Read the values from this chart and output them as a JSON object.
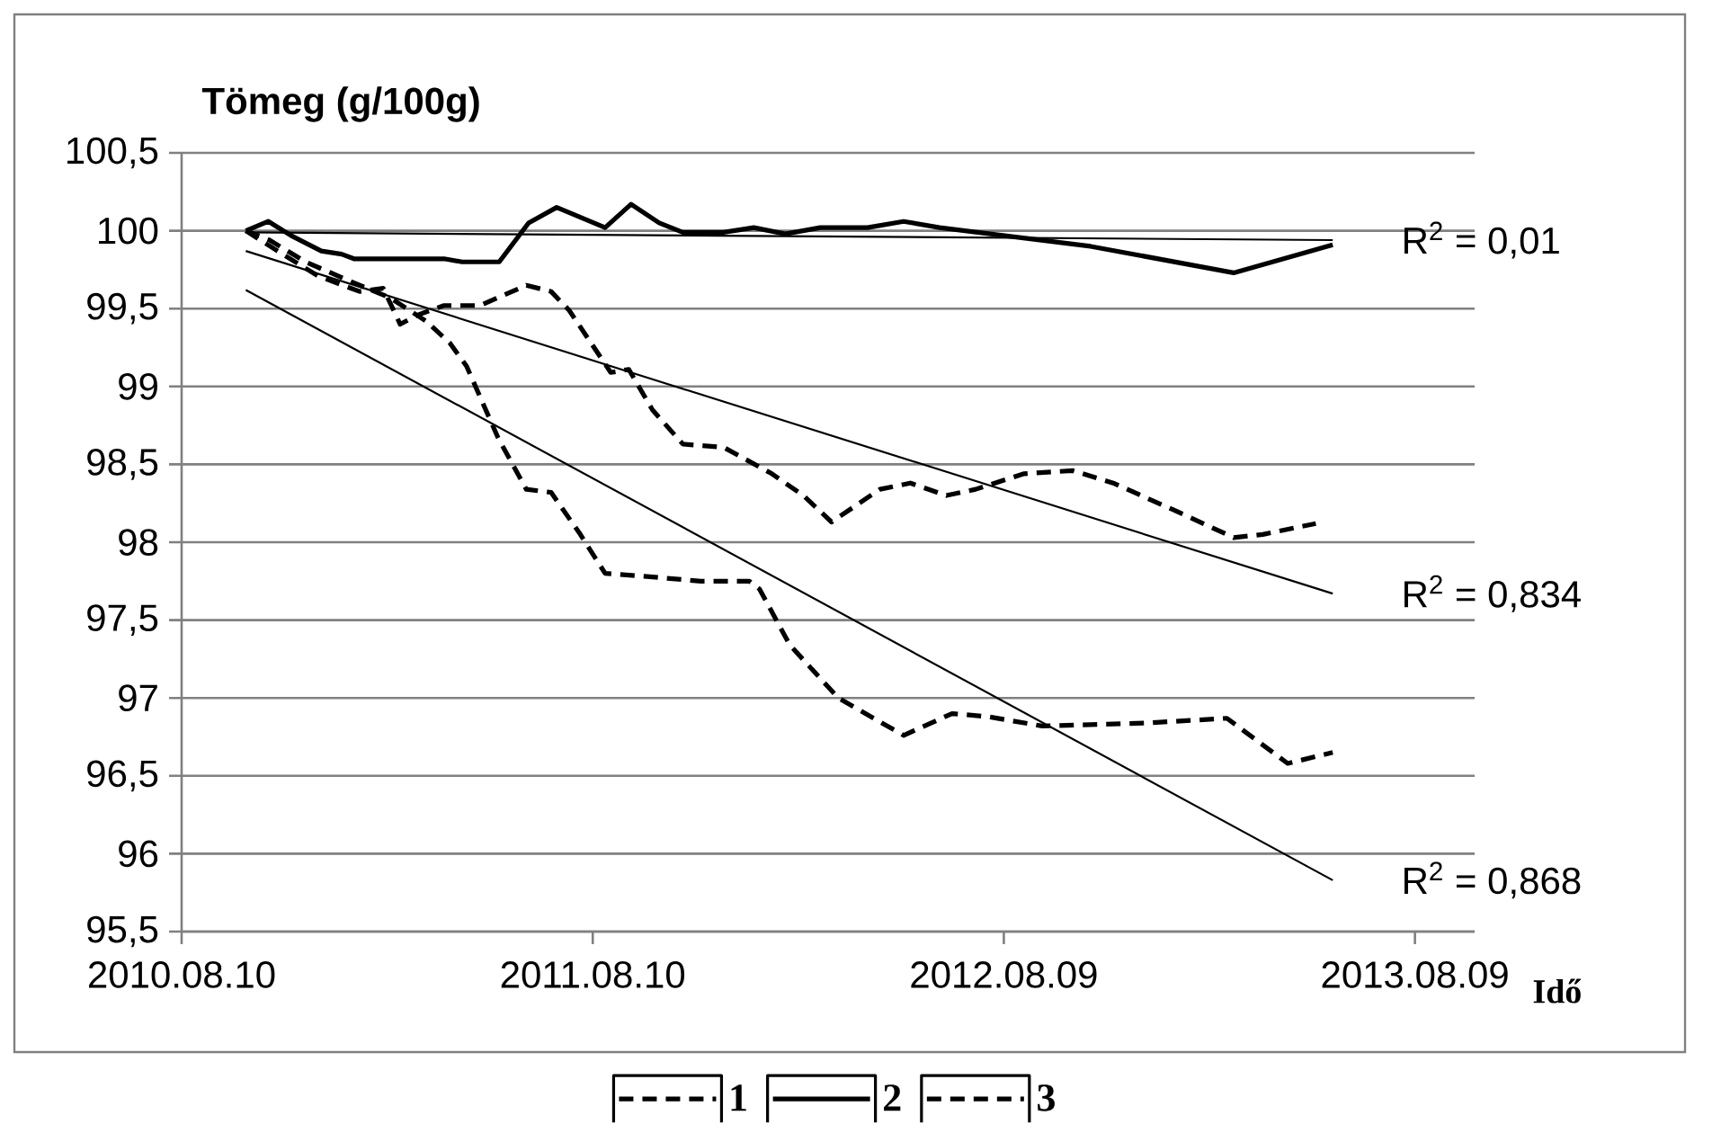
{
  "chart_data": {
    "type": "line",
    "ylabel": "Tömeg (g/100g)",
    "xlabel": "Idő",
    "xlim": [
      "2010-08-10",
      "2013-10-01"
    ],
    "xticks": [
      {
        "value": "2010-08-10",
        "label": "2010.08.10"
      },
      {
        "value": "2011-08-10",
        "label": "2011.08.10"
      },
      {
        "value": "2012-08-09",
        "label": "2012.08.09"
      },
      {
        "value": "2013-08-09",
        "label": "2013.08.09"
      }
    ],
    "ylim": [
      95.5,
      100.5
    ],
    "yticks": [
      {
        "value": 95.5,
        "label": "95,5"
      },
      96,
      {
        "value": 96.5,
        "label": "96,5"
      },
      97,
      {
        "value": 97.5,
        "label": "97,5"
      },
      98,
      {
        "value": 98.5,
        "label": "98,5"
      },
      99,
      {
        "value": 99.5,
        "label": "99,5"
      },
      100,
      {
        "value": 100.5,
        "label": "100,5"
      }
    ],
    "grid": "y",
    "legend": "bottom",
    "series": [
      {
        "name": "1",
        "color": "#000000",
        "line_style": "dashed",
        "x": [
          "2010-10-06",
          "2010-10-27",
          "2010-11-28",
          "2011-01-15",
          "2011-02-11",
          "2011-03-15",
          "2011-04-05",
          "2011-04-20",
          "2011-05-18",
          "2011-06-12",
          "2011-07-04",
          "2011-07-30",
          "2011-08-21",
          "2011-09-27",
          "2011-11-14",
          "2011-12-27",
          "2012-01-05",
          "2012-02-01",
          "2012-03-15",
          "2012-05-12",
          "2012-06-24",
          "2012-07-26",
          "2012-09-12",
          "2012-12-16",
          "2013-02-23",
          "2013-04-18",
          "2013-05-28"
        ],
        "values": [
          100.0,
          99.94,
          99.8,
          99.65,
          99.57,
          99.42,
          99.28,
          99.13,
          98.67,
          98.34,
          98.32,
          98.05,
          97.8,
          97.78,
          97.75,
          97.75,
          97.7,
          97.34,
          97.0,
          96.76,
          96.9,
          96.88,
          96.82,
          96.84,
          96.87,
          96.58,
          96.65
        ]
      },
      {
        "name": "2",
        "color": "#000000",
        "line_style": "solid",
        "x": [
          "2010-10-06",
          "2010-10-26",
          "2010-11-15",
          "2010-12-12",
          "2010-12-30",
          "2011-01-10",
          "2011-03-31",
          "2011-04-16",
          "2011-05-19",
          "2011-06-14",
          "2011-07-09",
          "2011-08-21",
          "2011-09-13",
          "2011-10-08",
          "2011-10-29",
          "2011-12-04",
          "2011-12-31",
          "2012-01-28",
          "2012-02-28",
          "2012-03-20",
          "2012-04-10",
          "2012-05-12",
          "2012-06-13",
          "2012-10-25",
          "2013-03-01",
          "2013-05-28"
        ],
        "values": [
          100.0,
          100.06,
          99.97,
          99.87,
          99.85,
          99.82,
          99.82,
          99.8,
          99.8,
          100.05,
          100.15,
          100.02,
          100.17,
          100.05,
          99.99,
          99.99,
          100.02,
          99.98,
          100.02,
          100.02,
          100.02,
          100.06,
          100.02,
          99.9,
          99.73,
          99.91
        ]
      },
      {
        "name": "3",
        "color": "#000000",
        "line_style": "dashed",
        "x": [
          "2010-10-06",
          "2010-11-01",
          "2010-12-09",
          "2011-01-15",
          "2011-02-05",
          "2011-02-20",
          "2011-03-08",
          "2011-03-31",
          "2011-05-02",
          "2011-06-12",
          "2011-07-04",
          "2011-07-20",
          "2011-08-26",
          "2011-09-11",
          "2011-10-02",
          "2011-10-29",
          "2011-12-04",
          "2012-01-16",
          "2012-02-13",
          "2012-03-09",
          "2012-04-21",
          "2012-05-18",
          "2012-06-19",
          "2012-07-15",
          "2012-08-27",
          "2012-10-09",
          "2012-11-14",
          "2013-01-06",
          "2013-03-01",
          "2013-03-27",
          "2013-05-13"
        ],
        "values": [
          100.0,
          99.88,
          99.71,
          99.61,
          99.63,
          99.4,
          99.46,
          99.52,
          99.52,
          99.65,
          99.61,
          99.49,
          99.09,
          99.11,
          98.85,
          98.63,
          98.61,
          98.44,
          98.3,
          98.13,
          98.34,
          98.38,
          98.3,
          98.34,
          98.44,
          98.46,
          98.38,
          98.21,
          98.03,
          98.05,
          98.12
        ]
      },
      {
        "type": "line",
        "color": "#000000",
        "line_style": "solid",
        "x": [
          "2010-10-06",
          "2013-05-28"
        ],
        "values": [
          99.99,
          99.94
        ]
      },
      {
        "type": "line",
        "color": "#000000",
        "line_style": "solid",
        "x": [
          "2010-10-06",
          "2013-05-28"
        ],
        "values": [
          99.87,
          97.67
        ]
      },
      {
        "type": "line",
        "color": "#000000",
        "line_style": "solid",
        "x": [
          "2010-10-06",
          "2013-05-28"
        ],
        "values": [
          99.62,
          95.83
        ]
      }
    ],
    "annotations": [
      "R$^{2}$ = 0,01",
      "R$^{2}$ = 0,834",
      "R$^{2}$ = 0,868"
    ]
  }
}
